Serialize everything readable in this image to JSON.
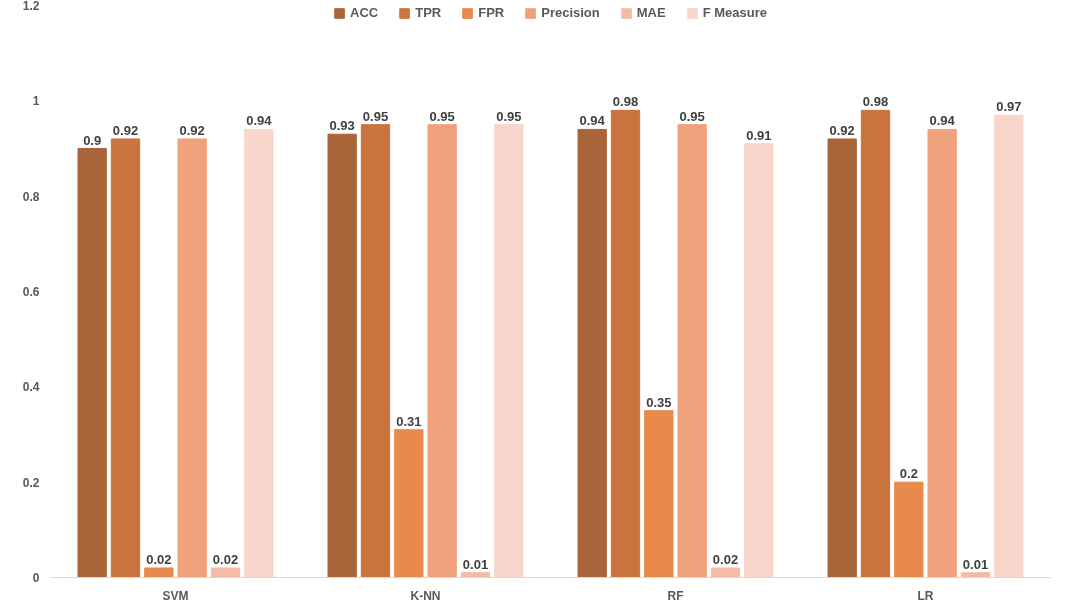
{
  "chart_data": {
    "type": "bar",
    "categories": [
      "SVM",
      "K-NN",
      "RF",
      "LR"
    ],
    "series": [
      {
        "name": "ACC",
        "color": "#a9643a",
        "values": [
          0.9,
          0.93,
          0.94,
          0.92
        ]
      },
      {
        "name": "TPR",
        "color": "#c8743c",
        "values": [
          0.92,
          0.95,
          0.98,
          0.98
        ]
      },
      {
        "name": "FPR",
        "color": "#e88a4c",
        "values": [
          0.02,
          0.31,
          0.35,
          0.2
        ]
      },
      {
        "name": "Precision",
        "color": "#f0a27c",
        "values": [
          0.92,
          0.95,
          0.95,
          0.94
        ]
      },
      {
        "name": "MAE",
        "color": "#f4bca6",
        "values": [
          0.02,
          0.01,
          0.02,
          0.01
        ]
      },
      {
        "name": "F Measure",
        "color": "#f8d6cc",
        "values": [
          0.94,
          0.95,
          0.91,
          0.97
        ]
      }
    ],
    "ylim": [
      0,
      1.2
    ],
    "yticks": [
      0,
      0.2,
      0.4,
      0.6,
      0.8,
      1,
      1.2
    ],
    "grid": false,
    "legend": "top",
    "data_labels": true
  }
}
